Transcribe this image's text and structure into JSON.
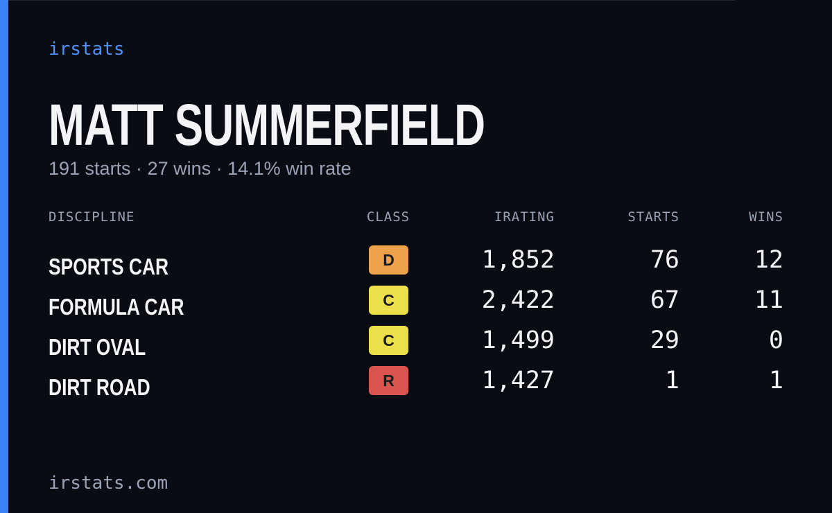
{
  "brand": "irstats",
  "header": {
    "title": "MATT SUMMERFIELD",
    "subtitle": "191 starts · 27 wins · 14.1% win rate"
  },
  "table": {
    "columns": [
      "DISCIPLINE",
      "CLASS",
      "IRATING",
      "STARTS",
      "WINS"
    ],
    "rows": [
      {
        "discipline": "SPORTS CAR",
        "class": "D",
        "class_color": "#eea34a",
        "irating": "1,852",
        "starts": "76",
        "wins": "12"
      },
      {
        "discipline": "FORMULA CAR",
        "class": "C",
        "class_color": "#ebe04a",
        "irating": "2,422",
        "starts": "67",
        "wins": "11"
      },
      {
        "discipline": "DIRT OVAL",
        "class": "C",
        "class_color": "#ebe04a",
        "irating": "1,499",
        "starts": "29",
        "wins": "0"
      },
      {
        "discipline": "DIRT ROAD",
        "class": "R",
        "class_color": "#d9534f",
        "irating": "1,427",
        "starts": "1",
        "wins": "1"
      }
    ]
  },
  "footer": {
    "url": "irstats.com"
  }
}
